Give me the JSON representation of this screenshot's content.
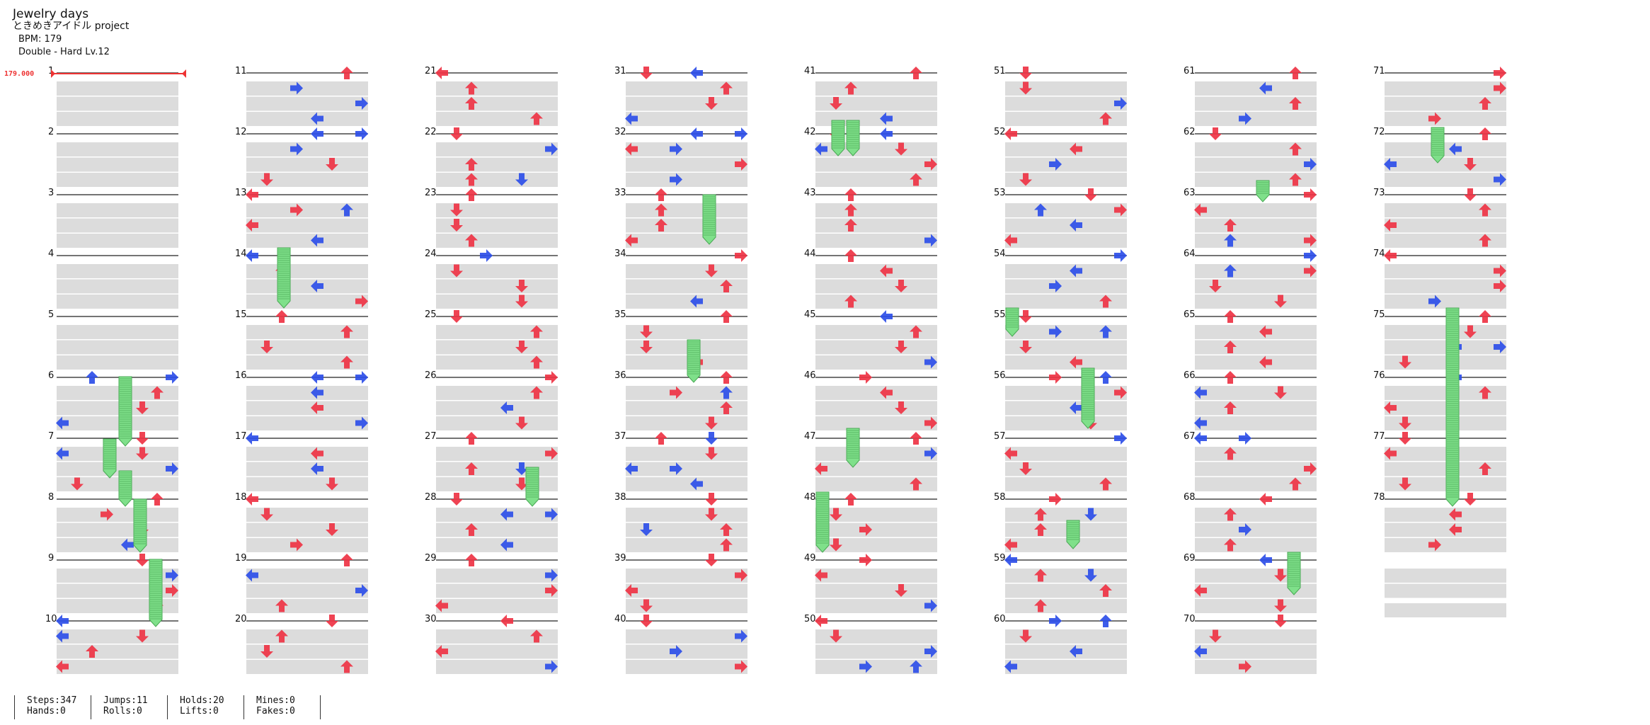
{
  "header": {
    "title": "Jewelry days",
    "artist": "ときめきアイドル project",
    "bpm": "BPM: 179",
    "chart": "Double - Hard  Lv.12"
  },
  "bpm_marker": "179.000",
  "measures": [
    1,
    2,
    3,
    4,
    5,
    6,
    7,
    8,
    9,
    10,
    11,
    12,
    13,
    14,
    15,
    16,
    17,
    18,
    19,
    20,
    21,
    22,
    23,
    24,
    25,
    26,
    27,
    28,
    29,
    30,
    31,
    32,
    33,
    34,
    35,
    36,
    37,
    38,
    39,
    40,
    41,
    42,
    43,
    44,
    45,
    46,
    47,
    48,
    49,
    50,
    51,
    52,
    53,
    54,
    55,
    56,
    57,
    58,
    59,
    60,
    61,
    62,
    63,
    64,
    65,
    66,
    67,
    68,
    69,
    70,
    71,
    72,
    73,
    74,
    75,
    76,
    77,
    78
  ],
  "stats": {
    "steps": "Steps:347",
    "hands": "Hands:0",
    "jumps": "Jumps:11",
    "rolls": "Rolls:0",
    "holds": "Holds:20",
    "lifts": "Lifts:0",
    "mines": "Mines:0",
    "fakes": "Fakes:0"
  },
  "colors": {
    "red": "#ee3344",
    "blue": "#2c4ee8",
    "hold": "#7fe08a",
    "band": "#dcdcdc"
  }
}
